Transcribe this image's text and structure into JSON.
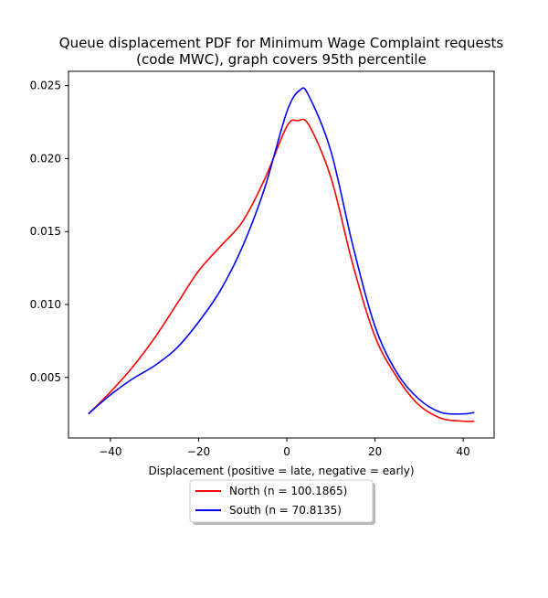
{
  "chart_data": {
    "type": "line",
    "title_line1": "Queue displacement PDF for Minimum Wage Complaint  requests",
    "title_line2": "(code MWC), graph covers 95th percentile",
    "xlabel": "Displacement (positive = late, negative = early)",
    "ylabel": "",
    "xlim": [
      -49.5,
      47.0
    ],
    "ylim": [
      0.00085,
      0.02598
    ],
    "xticks": [
      -40,
      -20,
      0,
      20,
      40
    ],
    "yticks": [
      0.005,
      0.01,
      0.015,
      0.02,
      0.025
    ],
    "xtick_labels": [
      "−40",
      "−20",
      "0",
      "20",
      "40"
    ],
    "ytick_labels": [
      "0.005",
      "0.010",
      "0.015",
      "0.020",
      "0.025"
    ],
    "grid": false,
    "legend_position": "bottom-center",
    "series": [
      {
        "name": "North (n = 100.1865)",
        "color": "#ff0000",
        "x": [
          -45,
          -40,
          -35,
          -30,
          -25,
          -20,
          -15,
          -10,
          -5,
          0,
          2.5,
          5,
          10,
          15,
          20,
          25,
          30,
          35,
          40,
          42.5
        ],
        "y": [
          0.0025,
          0.004,
          0.0057,
          0.0077,
          0.01,
          0.0123,
          0.014,
          0.0157,
          0.0186,
          0.0222,
          0.0226,
          0.0223,
          0.0187,
          0.0127,
          0.0078,
          0.005,
          0.0031,
          0.0022,
          0.002,
          0.002
        ]
      },
      {
        "name": "South (n = 70.8135)",
        "color": "#0000ff",
        "x": [
          -45,
          -40,
          -35,
          -30,
          -25,
          -20,
          -15,
          -10,
          -5,
          0,
          3,
          5,
          10,
          15,
          20,
          25,
          30,
          35,
          40,
          42.5
        ],
        "y": [
          0.0025,
          0.0038,
          0.0049,
          0.0058,
          0.007,
          0.0088,
          0.011,
          0.014,
          0.018,
          0.0232,
          0.0247,
          0.0243,
          0.0205,
          0.014,
          0.0085,
          0.0053,
          0.0035,
          0.0026,
          0.0025,
          0.0026
        ]
      }
    ]
  }
}
